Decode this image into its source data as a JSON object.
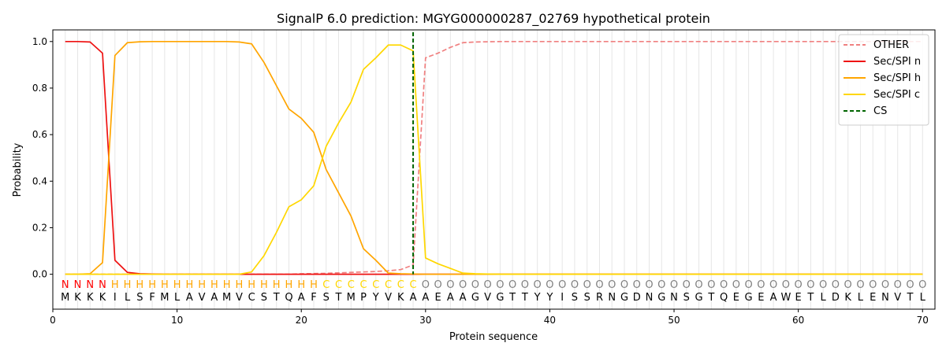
{
  "chart_data": {
    "type": "line",
    "title": "SignalP 6.0 prediction: MGYG000000287_02769 hypothetical protein",
    "xlabel": "Protein sequence",
    "ylabel": "Probability",
    "xlim": [
      0,
      71
    ],
    "ylim": [
      -0.15,
      1.05
    ],
    "x_ticks": [
      0,
      10,
      20,
      30,
      40,
      50,
      60,
      70
    ],
    "y_ticks": [
      0.0,
      0.2,
      0.4,
      0.6,
      0.8,
      1.0
    ],
    "x_tick_labels": [
      "0",
      "10",
      "20",
      "30",
      "40",
      "50",
      "60",
      "70"
    ],
    "y_tick_labels": [
      "0.0",
      "0.2",
      "0.4",
      "0.6",
      "0.8",
      "1.0"
    ],
    "grid": "vertical lines at each residue",
    "legend_position": "top-right",
    "sequence": "MKKKILSFMLAVAMVCSTQAFSTMPYVKAAEAAGVGTTYYISSRNGDNGNSGTQEGEAWETLDKLENVTL",
    "labels": "NNNNHHHHHHHHHHHHHHHHHCCCCCCCCOOOOOOOOOOOOOOOOOOOOOOOOOOOOOOOOOOOOOOOOOO",
    "label_colors": {
      "N": "#ff0000",
      "H": "#ffa500",
      "C": "#ffd700",
      "O": "#808080"
    },
    "cleavage_site": 29,
    "series": [
      {
        "name": "OTHER",
        "color": "#f08080",
        "style": "dashed",
        "values": [
          0.0,
          0.0,
          0.0,
          0.0,
          0.0,
          0.0,
          0.0,
          0.0,
          0.0,
          0.0,
          0.0,
          0.0,
          0.0,
          0.0,
          0.0,
          0.0,
          0.0,
          0.0,
          0.0,
          0.002,
          0.003,
          0.004,
          0.006,
          0.008,
          0.01,
          0.012,
          0.015,
          0.02,
          0.04,
          0.93,
          0.95,
          0.975,
          0.995,
          0.998,
          0.999,
          1.0,
          1.0,
          1.0,
          1.0,
          1.0,
          1.0,
          1.0,
          1.0,
          1.0,
          1.0,
          1.0,
          1.0,
          1.0,
          1.0,
          1.0,
          1.0,
          1.0,
          1.0,
          1.0,
          1.0,
          1.0,
          1.0,
          1.0,
          1.0,
          1.0,
          1.0,
          1.0,
          1.0,
          1.0,
          1.0,
          1.0,
          1.0,
          1.0,
          1.0,
          1.0
        ]
      },
      {
        "name": "Sec/SPI n",
        "color": "#ee1111",
        "style": "solid",
        "values": [
          1.0,
          1.0,
          0.998,
          0.95,
          0.06,
          0.008,
          0.002,
          0.001,
          0.0,
          0.0,
          0.0,
          0.0,
          0.0,
          0.0,
          0.0,
          0.0,
          0.0,
          0.0,
          0.0,
          0.0,
          0.0,
          0.0,
          0.0,
          0.0,
          0.0,
          0.0,
          0.0,
          0.0,
          0.0,
          0.0,
          0.0,
          0.0,
          0.0,
          0.0,
          0.0,
          0.0,
          0.0,
          0.0,
          0.0,
          0.0,
          0.0,
          0.0,
          0.0,
          0.0,
          0.0,
          0.0,
          0.0,
          0.0,
          0.0,
          0.0,
          0.0,
          0.0,
          0.0,
          0.0,
          0.0,
          0.0,
          0.0,
          0.0,
          0.0,
          0.0,
          0.0,
          0.0,
          0.0,
          0.0,
          0.0,
          0.0,
          0.0,
          0.0,
          0.0,
          0.0
        ]
      },
      {
        "name": "Sec/SPI h",
        "color": "#ffa500",
        "style": "solid",
        "values": [
          0.0,
          0.0,
          0.002,
          0.05,
          0.94,
          0.995,
          0.999,
          1.0,
          1.0,
          1.0,
          1.0,
          1.0,
          1.0,
          1.0,
          0.998,
          0.99,
          0.91,
          0.81,
          0.71,
          0.67,
          0.61,
          0.45,
          0.35,
          0.25,
          0.11,
          0.06,
          0.005,
          0.002,
          0.001,
          0.0,
          0.0,
          0.0,
          0.0,
          0.0,
          0.0,
          0.0,
          0.0,
          0.0,
          0.0,
          0.0,
          0.0,
          0.0,
          0.0,
          0.0,
          0.0,
          0.0,
          0.0,
          0.0,
          0.0,
          0.0,
          0.0,
          0.0,
          0.0,
          0.0,
          0.0,
          0.0,
          0.0,
          0.0,
          0.0,
          0.0,
          0.0,
          0.0,
          0.0,
          0.0,
          0.0,
          0.0,
          0.0,
          0.0,
          0.0,
          0.0
        ]
      },
      {
        "name": "Sec/SPI c",
        "color": "#ffd700",
        "style": "solid",
        "values": [
          0.0,
          0.0,
          0.0,
          0.0,
          0.0,
          0.0,
          0.0,
          0.0,
          0.0,
          0.0,
          0.0,
          0.0,
          0.0,
          0.0,
          0.0,
          0.01,
          0.08,
          0.18,
          0.29,
          0.32,
          0.38,
          0.55,
          0.65,
          0.74,
          0.88,
          0.93,
          0.985,
          0.985,
          0.96,
          0.07,
          0.045,
          0.025,
          0.005,
          0.002,
          0.001,
          0.0,
          0.0,
          0.0,
          0.0,
          0.0,
          0.0,
          0.0,
          0.0,
          0.0,
          0.0,
          0.0,
          0.0,
          0.0,
          0.0,
          0.0,
          0.0,
          0.0,
          0.0,
          0.0,
          0.0,
          0.0,
          0.0,
          0.0,
          0.0,
          0.0,
          0.0,
          0.0,
          0.0,
          0.0,
          0.0,
          0.0,
          0.0,
          0.0,
          0.0,
          0.0
        ]
      }
    ],
    "legend": [
      {
        "name": "OTHER",
        "color": "#f08080",
        "style": "dashed"
      },
      {
        "name": "Sec/SPI n",
        "color": "#ee1111",
        "style": "solid"
      },
      {
        "name": "Sec/SPI h",
        "color": "#ffa500",
        "style": "solid"
      },
      {
        "name": "Sec/SPI c",
        "color": "#ffd700",
        "style": "solid"
      },
      {
        "name": "CS",
        "color": "#006400",
        "style": "dashed"
      }
    ]
  }
}
